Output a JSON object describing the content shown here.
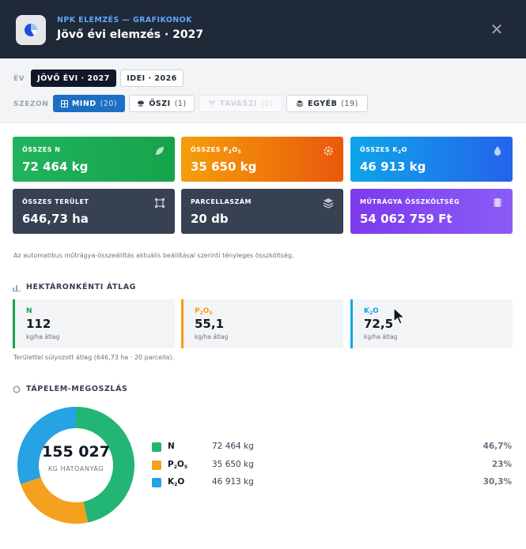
{
  "header": {
    "kicker": "NPK ELEMZÉS — GRAFIKONOK",
    "title": "Jövő évi elemzés · 2027",
    "app_icon": "pie-chart-icon",
    "close_icon": "close-icon",
    "close_glyph": "✕"
  },
  "filters": {
    "year_label": "ÉV",
    "years": [
      {
        "label": "JÖVŐ ÉVI · 2027",
        "active": true
      },
      {
        "label": "IDEI · 2026",
        "active": false
      }
    ],
    "season_label": "SZEZON",
    "seasons": [
      {
        "label": "MIND",
        "count": "(20)",
        "icon": "grid-icon",
        "state": "active"
      },
      {
        "label": "ŐSZI",
        "count": "(1)",
        "icon": "rain-cloud-icon",
        "state": "normal"
      },
      {
        "label": "TAVASZI",
        "count": "(0)",
        "icon": "sprout-icon",
        "state": "disabled"
      },
      {
        "label": "EGYÉB",
        "count": "(19)",
        "icon": "layers-icon",
        "state": "normal"
      }
    ]
  },
  "summary": {
    "total_n": {
      "label": "ÖSSZES N",
      "value": "72 464 kg",
      "icon": "leaf-icon"
    },
    "total_p": {
      "label_pre": "ÖSSZES P",
      "sub1": "2",
      "mid": "O",
      "sub2": "5",
      "value": "35 650 kg",
      "icon": "gear-icon"
    },
    "total_k": {
      "label_pre": "ÖSSZES K",
      "sub1": "2",
      "mid": "O",
      "value": "46 913 kg",
      "icon": "drop-icon"
    },
    "total_area": {
      "label": "ÖSSZES TERÜLET",
      "value": "646,73 ha",
      "icon": "frame-icon"
    },
    "parcel_count": {
      "label": "PARCELLASZÁM",
      "value": "20 db",
      "icon": "layers-icon"
    },
    "fertilizer_cost": {
      "label": "MŰTRÁGYA ÖSSZKÖLTSÉG",
      "value": "54 062 759 Ft",
      "icon": "coins-icon"
    },
    "note": "Az automatikus műtrágya-összeállítás aktuális beállításai szerinti tényleges összköltség."
  },
  "per_hectare": {
    "title": "HEKTÁRONKÉNTI ÁTLAG",
    "icon": "bar-chart-icon",
    "items": [
      {
        "name": "N",
        "value": "112",
        "unit": "kg/ha átlag",
        "color": "#16a34a"
      },
      {
        "name_pre": "P",
        "sub1": "2",
        "mid": "O",
        "sub2": "5",
        "value": "55,1",
        "unit": "kg/ha átlag",
        "color": "#f59e0b"
      },
      {
        "name_pre": "K",
        "sub1": "2",
        "mid": "O",
        "value": "72,5",
        "unit": "kg/ha átlag",
        "color": "#0ea5e9"
      }
    ],
    "note": "Területtel súlyozott átlag (646,73 ha · 20 parcella)."
  },
  "distribution": {
    "title": "TÁPELEM-MEGOSZLÁS",
    "icon": "donut-icon",
    "center_value": "155 027",
    "center_label": "KG HATÓANYAG",
    "chart_data": {
      "type": "pie",
      "categories": [
        "N",
        "P2O5",
        "K2O"
      ],
      "values": [
        72464,
        35650,
        46913
      ],
      "colors": [
        "#22b573",
        "#f5a01e",
        "#27a2e3"
      ]
    },
    "legend": [
      {
        "name": "N",
        "kg": "72 464 kg",
        "pct": "46,7%",
        "color": "#22b573"
      },
      {
        "name_pre": "P",
        "sub1": "2",
        "mid": "O",
        "sub2": "5",
        "kg": "35 650 kg",
        "pct": "23%",
        "color": "#f5a01e"
      },
      {
        "name_pre": "K",
        "sub1": "2",
        "mid": "O",
        "kg": "46 913 kg",
        "pct": "30,3%",
        "color": "#27a2e3"
      }
    ]
  }
}
